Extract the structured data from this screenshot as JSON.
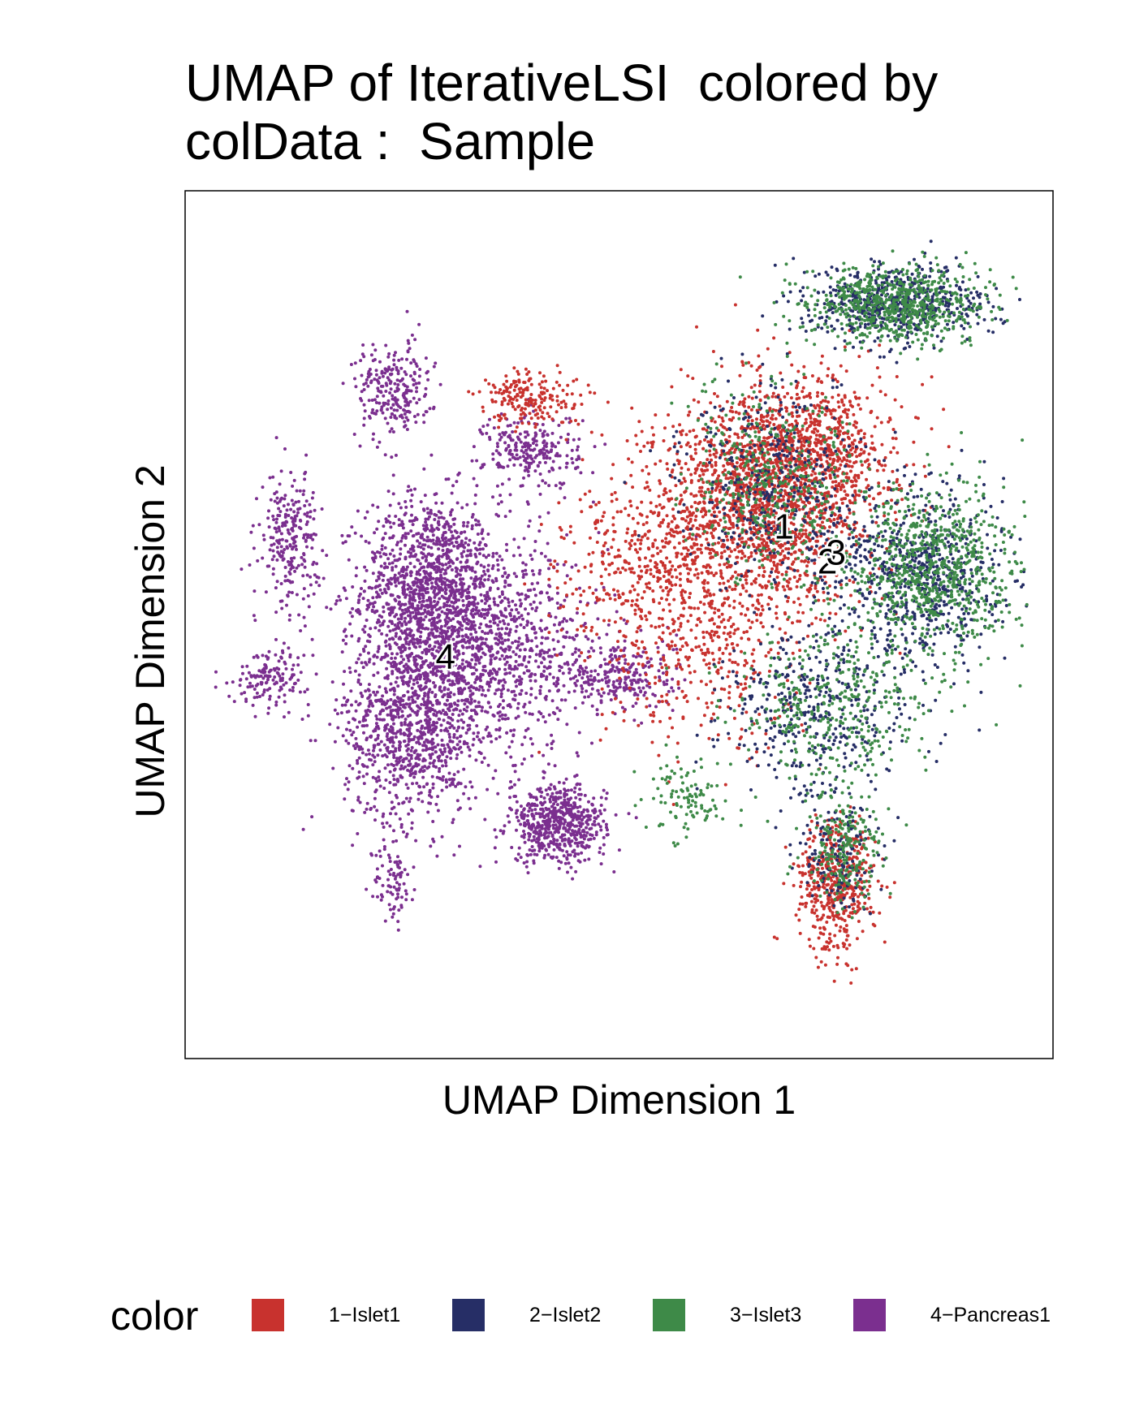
{
  "title_lines": [
    "UMAP of IterativeLSI  colored by",
    "colData :  Sample"
  ],
  "chart_data": {
    "type": "scatter",
    "title": "UMAP of IterativeLSI  colored by colData :  Sample",
    "xlabel": "UMAP Dimension 1",
    "ylabel": "UMAP Dimension 2",
    "xlim": [
      0,
      100
    ],
    "ylim": [
      0,
      100
    ],
    "grid": false,
    "legend_position": "bottom",
    "legend_title": "color",
    "series": [
      {
        "name": "1-Islet1",
        "label": "1",
        "color": "#C8322E",
        "center": [
          69,
          61
        ]
      },
      {
        "name": "2-Islet2",
        "label": "2",
        "color": "#262E66",
        "center": [
          74,
          57
        ]
      },
      {
        "name": "3-Islet3",
        "label": "3",
        "color": "#3E8A48",
        "center": [
          75,
          58
        ]
      },
      {
        "name": "4-Pancreas1",
        "label": "4",
        "color": "#7B2F8F",
        "center": [
          30,
          46
        ]
      }
    ]
  },
  "legend": {
    "title": "color",
    "items": [
      {
        "label": "1−Islet1",
        "color": "#C8322E"
      },
      {
        "label": "2−Islet2",
        "color": "#262E66"
      },
      {
        "label": "3−Islet3",
        "color": "#3E8A48"
      },
      {
        "label": "4−Pancreas1",
        "color": "#7B2F8F"
      }
    ]
  }
}
